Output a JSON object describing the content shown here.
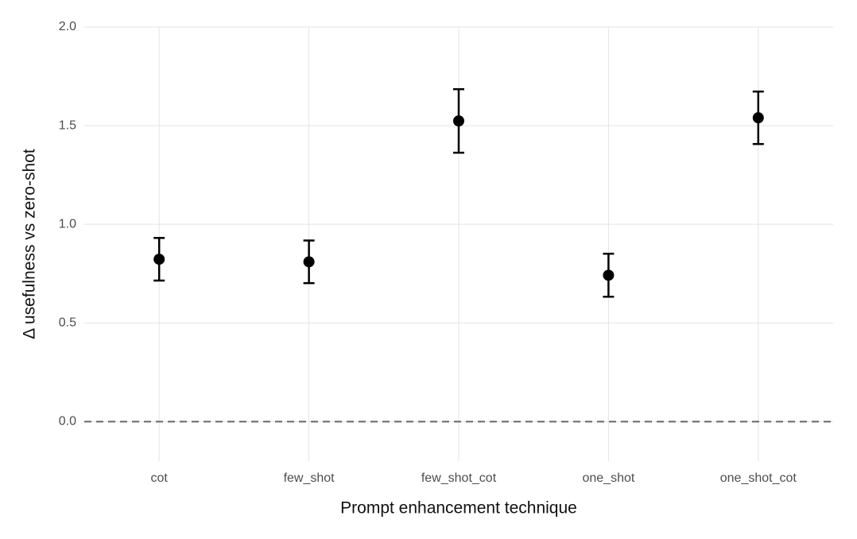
{
  "chart_data": {
    "type": "errorbar",
    "x_label": "Prompt enhancement technique",
    "y_label": "Δ usefulness vs zero-shot",
    "categories": [
      "cot",
      "few_shot",
      "few_shot_cot",
      "one_shot",
      "one_shot_cot"
    ],
    "values": [
      0.823,
      0.81,
      1.524,
      0.742,
      1.54
    ],
    "errors": [
      0.108,
      0.108,
      0.161,
      0.109,
      0.133
    ],
    "color": "#000000",
    "ylim": [
      -0.2,
      2.0
    ],
    "yticks": [
      {
        "value": 0,
        "label": "0.0"
      },
      0.5,
      {
        "value": 1,
        "label": "1.0"
      },
      1.5,
      {
        "value": 2,
        "label": "2.0"
      }
    ],
    "reference_line": 0,
    "grid": true
  }
}
